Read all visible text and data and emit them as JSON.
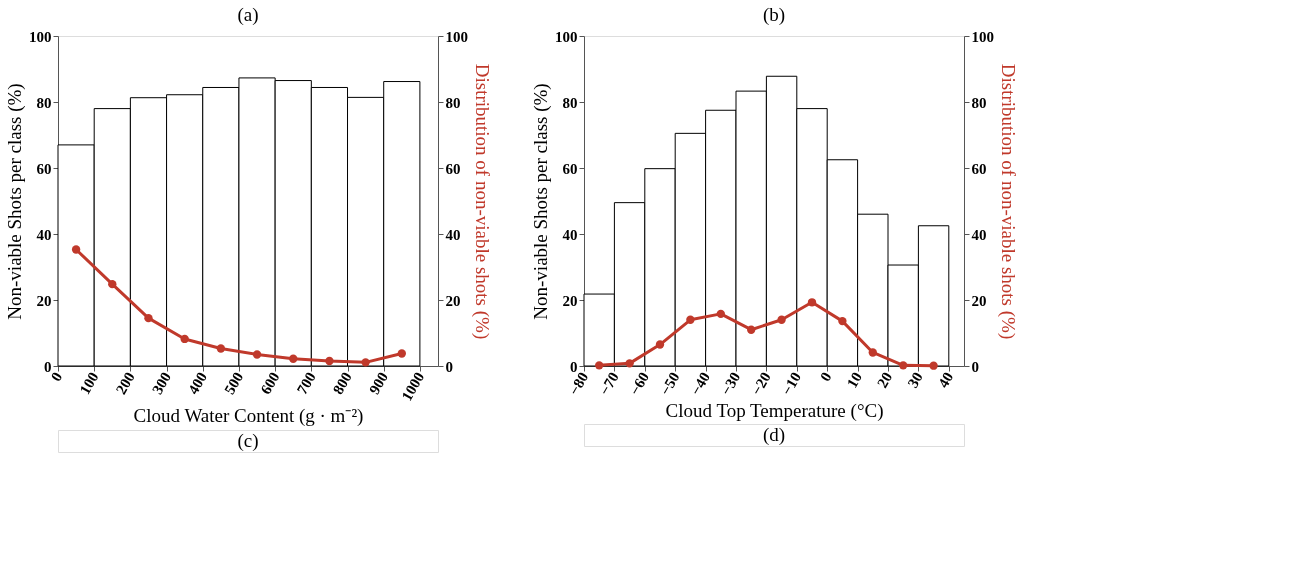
{
  "chart_data": [
    {
      "type": "histogram",
      "title": "(a)",
      "xlabel": "Cloud Water Content (g · m⁻²)",
      "ylabel": "Non-viable Shots per class (%)",
      "y2label": "Distribution of non-viable shots (%)",
      "annotations": [
        "(c)"
      ],
      "bins": [
        0,
        100,
        200,
        300,
        400,
        500,
        600,
        700,
        800,
        900,
        1000
      ],
      "series": [
        {
          "type": "histogram",
          "color": "#ffffff",
          "values": [
            67,
            78,
            81.3,
            82.2,
            84.4,
            87.3,
            86.5,
            84.4,
            81.4,
            86.2
          ]
        },
        {
          "type": "line",
          "axis": "y2",
          "color": "#c0392b",
          "x": [
            50,
            150,
            250,
            350,
            450,
            550,
            650,
            750,
            850,
            950
          ],
          "values": [
            35.3,
            24.8,
            14.5,
            8.2,
            5.3,
            3.5,
            2.2,
            1.5,
            1.1,
            3.8
          ]
        }
      ],
      "xlim": [
        0,
        1050
      ],
      "xticks": [
        0,
        100,
        200,
        300,
        400,
        500,
        600,
        700,
        800,
        900,
        1000
      ],
      "ylim": [
        0,
        100
      ],
      "yticks": [
        0,
        20,
        40,
        60,
        80,
        100
      ],
      "y2lim": [
        0,
        100
      ],
      "y2ticks": [
        0,
        20,
        40,
        60,
        80,
        100
      ],
      "grid": false,
      "marker": "circle",
      "line_style": "solid"
    },
    {
      "type": "histogram",
      "title": "(b)",
      "xlabel": "Cloud Top Temperature (°C)",
      "ylabel": "Non-viable Shots per class (%)",
      "y2label": "Distribution of non-viable shots (%)",
      "annotations": [
        "(d)"
      ],
      "bins": [
        -80,
        -70,
        -60,
        -50,
        -40,
        -30,
        -20,
        -10,
        0,
        10,
        20,
        30,
        40
      ],
      "series": [
        {
          "type": "histogram",
          "color": "#ffffff",
          "values": [
            21.8,
            49.5,
            59.8,
            70.5,
            77.5,
            83.3,
            87.8,
            78,
            62.5,
            46,
            30.6,
            42.5
          ]
        },
        {
          "type": "line",
          "axis": "y2",
          "color": "#c0392b",
          "x": [
            -75,
            -65,
            -55,
            -45,
            -35,
            -25,
            -15,
            -5,
            5,
            15,
            25,
            35
          ],
          "values": [
            0.2,
            0.8,
            6.5,
            14,
            15.8,
            11,
            14,
            19.3,
            13.6,
            4.1,
            0.2,
            0.1
          ]
        }
      ],
      "xlim": [
        -80,
        45
      ],
      "xticks": [
        -80,
        -70,
        -60,
        -50,
        -40,
        -30,
        -20,
        -10,
        0,
        10,
        20,
        30,
        40
      ],
      "ylim": [
        0,
        100
      ],
      "yticks": [
        0,
        20,
        40,
        60,
        80,
        100
      ],
      "y2lim": [
        0,
        100
      ],
      "y2ticks": [
        0,
        20,
        40,
        60,
        80,
        100
      ],
      "grid": false,
      "marker": "circle",
      "line_style": "solid"
    }
  ]
}
